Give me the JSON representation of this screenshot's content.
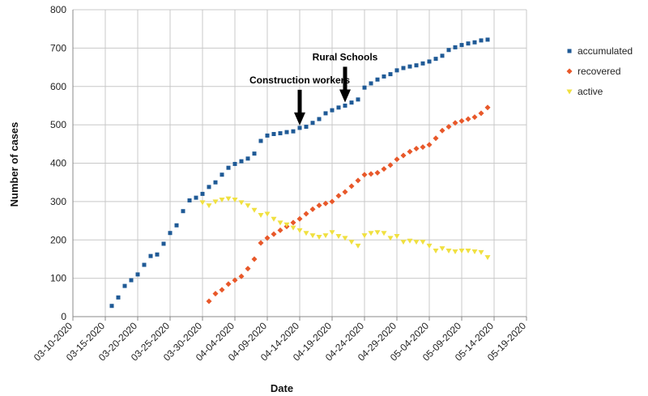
{
  "chart_data": {
    "type": "scatter",
    "xlabel": "Date",
    "ylabel": "Number of cases",
    "xlim": [
      "03-10-2020",
      "05-19-2020"
    ],
    "ylim": [
      0,
      800
    ],
    "x_ticks": [
      "03-10-2020",
      "03-15-2020",
      "03-20-2020",
      "03-25-2020",
      "03-30-2020",
      "04-04-2020",
      "04-09-2020",
      "04-14-2020",
      "04-19-2020",
      "04-24-2020",
      "04-29-2020",
      "05-04-2020",
      "05-09-2020",
      "05-14-2020",
      "05-19-2020"
    ],
    "y_ticks": [
      0,
      100,
      200,
      300,
      400,
      500,
      600,
      700,
      800
    ],
    "grid": true,
    "legend_position": "right",
    "series": [
      {
        "name": "accumulated",
        "marker": "square",
        "color": "#1f5a96",
        "x": [
          "03-16-2020",
          "03-17-2020",
          "03-18-2020",
          "03-19-2020",
          "03-20-2020",
          "03-21-2020",
          "03-22-2020",
          "03-23-2020",
          "03-24-2020",
          "03-25-2020",
          "03-26-2020",
          "03-27-2020",
          "03-28-2020",
          "03-29-2020",
          "03-30-2020",
          "03-31-2020",
          "04-01-2020",
          "04-02-2020",
          "04-03-2020",
          "04-04-2020",
          "04-05-2020",
          "04-06-2020",
          "04-07-2020",
          "04-08-2020",
          "04-09-2020",
          "04-10-2020",
          "04-11-2020",
          "04-12-2020",
          "04-13-2020",
          "04-14-2020",
          "04-15-2020",
          "04-16-2020",
          "04-17-2020",
          "04-18-2020",
          "04-19-2020",
          "04-20-2020",
          "04-21-2020",
          "04-22-2020",
          "04-23-2020",
          "04-24-2020",
          "04-25-2020",
          "04-26-2020",
          "04-27-2020",
          "04-28-2020",
          "04-29-2020",
          "04-30-2020",
          "05-01-2020",
          "05-02-2020",
          "05-03-2020",
          "05-04-2020",
          "05-05-2020",
          "05-06-2020",
          "05-07-2020",
          "05-08-2020",
          "05-09-2020",
          "05-10-2020",
          "05-11-2020",
          "05-12-2020",
          "05-13-2020"
        ],
        "y": [
          28,
          50,
          80,
          95,
          110,
          135,
          158,
          162,
          190,
          218,
          238,
          275,
          303,
          310,
          320,
          338,
          350,
          370,
          388,
          398,
          405,
          412,
          425,
          458,
          472,
          476,
          478,
          481,
          483,
          492,
          495,
          505,
          515,
          530,
          538,
          545,
          550,
          558,
          566,
          597,
          608,
          618,
          626,
          632,
          642,
          648,
          652,
          655,
          660,
          665,
          672,
          680,
          695,
          702,
          708,
          712,
          715,
          720,
          722
        ],
        "marker_size": 5
      },
      {
        "name": "recovered",
        "marker": "diamond",
        "color": "#e8582a",
        "x": [
          "03-31-2020",
          "04-01-2020",
          "04-02-2020",
          "04-03-2020",
          "04-04-2020",
          "04-05-2020",
          "04-06-2020",
          "04-07-2020",
          "04-08-2020",
          "04-09-2020",
          "04-10-2020",
          "04-11-2020",
          "04-12-2020",
          "04-13-2020",
          "04-14-2020",
          "04-15-2020",
          "04-16-2020",
          "04-17-2020",
          "04-18-2020",
          "04-19-2020",
          "04-20-2020",
          "04-21-2020",
          "04-22-2020",
          "04-23-2020",
          "04-24-2020",
          "04-25-2020",
          "04-26-2020",
          "04-27-2020",
          "04-28-2020",
          "04-29-2020",
          "04-30-2020",
          "05-01-2020",
          "05-02-2020",
          "05-03-2020",
          "05-04-2020",
          "05-05-2020",
          "05-06-2020",
          "05-07-2020",
          "05-08-2020",
          "05-09-2020",
          "05-10-2020",
          "05-11-2020",
          "05-12-2020",
          "05-13-2020"
        ],
        "y": [
          40,
          60,
          70,
          85,
          95,
          105,
          125,
          150,
          192,
          205,
          215,
          225,
          235,
          245,
          255,
          268,
          280,
          290,
          295,
          300,
          315,
          325,
          340,
          355,
          370,
          372,
          375,
          385,
          395,
          410,
          420,
          430,
          438,
          442,
          448,
          465,
          485,
          495,
          505,
          510,
          515,
          520,
          530,
          545
        ]
      },
      {
        "name": "active",
        "marker": "triangle-down",
        "color": "#f0e040",
        "x": [
          "03-30-2020",
          "03-31-2020",
          "04-01-2020",
          "04-02-2020",
          "04-03-2020",
          "04-04-2020",
          "04-05-2020",
          "04-06-2020",
          "04-07-2020",
          "04-08-2020",
          "04-09-2020",
          "04-10-2020",
          "04-11-2020",
          "04-12-2020",
          "04-13-2020",
          "04-14-2020",
          "04-15-2020",
          "04-16-2020",
          "04-17-2020",
          "04-18-2020",
          "04-19-2020",
          "04-20-2020",
          "04-21-2020",
          "04-22-2020",
          "04-23-2020",
          "04-24-2020",
          "04-25-2020",
          "04-26-2020",
          "04-27-2020",
          "04-28-2020",
          "04-29-2020",
          "04-30-2020",
          "05-01-2020",
          "05-02-2020",
          "05-03-2020",
          "05-04-2020",
          "05-05-2020",
          "05-06-2020",
          "05-07-2020",
          "05-08-2020",
          "05-09-2020",
          "05-10-2020",
          "05-11-2020",
          "05-12-2020",
          "05-13-2020"
        ],
        "y": [
          298,
          290,
          300,
          305,
          308,
          305,
          298,
          290,
          278,
          265,
          268,
          255,
          245,
          240,
          232,
          225,
          218,
          212,
          208,
          212,
          220,
          210,
          205,
          195,
          185,
          212,
          218,
          220,
          218,
          205,
          210,
          195,
          198,
          195,
          195,
          185,
          172,
          178,
          172,
          170,
          172,
          172,
          170,
          168,
          155
        ]
      }
    ],
    "annotations": [
      {
        "text": "Construction workers",
        "x": "04-14-2020",
        "y": 490,
        "arrow": "down"
      },
      {
        "text": "Rural Schools",
        "x": "04-21-2020",
        "y": 550,
        "arrow": "down"
      }
    ]
  }
}
